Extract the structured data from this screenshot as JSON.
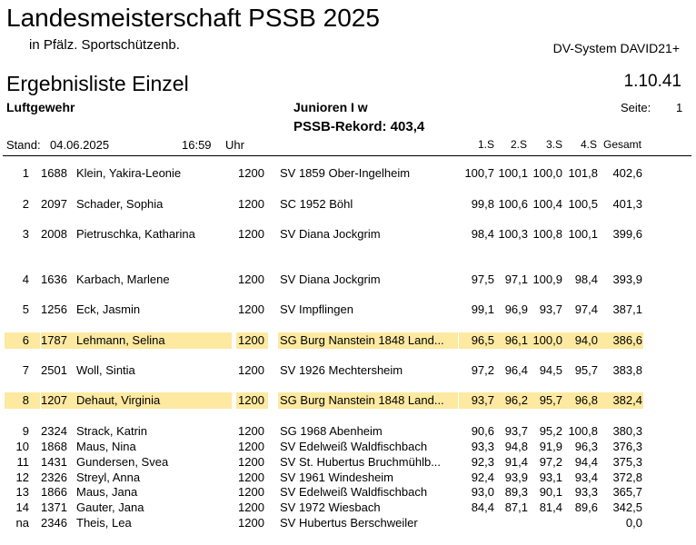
{
  "header": {
    "title": "Landesmeisterschaft PSSB 2025",
    "subtitle": "in Pfälz. Sportschützenb.",
    "system": "DV-System DAVID21+",
    "list_title": "Ergebnisliste Einzel",
    "version": "1.10.41",
    "discipline": "Luftgewehr",
    "category": "Junioren I w",
    "page_label": "Seite:",
    "page_number": "1",
    "record": "PSSB-Rekord: 403,4",
    "stand_label": "Stand:",
    "stand_date": "04.06.2025",
    "stand_time": "16:59",
    "stand_unit": "Uhr"
  },
  "columns": {
    "s1": "1.S",
    "s2": "2.S",
    "s3": "3.S",
    "s4": "4.S",
    "total": "Gesamt"
  },
  "highlight_color": "#fde9a0",
  "results": [
    {
      "rank": "1",
      "nr": "1688",
      "name": "Klein, Yakira-Leonie",
      "class": "1200",
      "club": "SV 1859 Ober-Ingelheim",
      "s1": "100,7",
      "s2": "100,1",
      "s3": "100,0",
      "s4": "101,8",
      "total": "402,6",
      "highlight": false
    },
    {
      "rank": "2",
      "nr": "2097",
      "name": "Schader, Sophia",
      "class": "1200",
      "club": "SC 1952 Böhl",
      "s1": "99,8",
      "s2": "100,6",
      "s3": "100,4",
      "s4": "100,5",
      "total": "401,3",
      "highlight": false
    },
    {
      "rank": "3",
      "nr": "2008",
      "name": "Pietruschka, Katharina",
      "class": "1200",
      "club": "SV Diana Jockgrim",
      "s1": "98,4",
      "s2": "100,3",
      "s3": "100,8",
      "s4": "100,1",
      "total": "399,6",
      "highlight": false
    },
    {
      "rank": "4",
      "nr": "1636",
      "name": "Karbach, Marlene",
      "class": "1200",
      "club": "SV Diana Jockgrim",
      "s1": "97,5",
      "s2": "97,1",
      "s3": "100,9",
      "s4": "98,4",
      "total": "393,9",
      "highlight": false
    },
    {
      "rank": "5",
      "nr": "1256",
      "name": "Eck, Jasmin",
      "class": "1200",
      "club": "SV Impflingen",
      "s1": "99,1",
      "s2": "96,9",
      "s3": "93,7",
      "s4": "97,4",
      "total": "387,1",
      "highlight": false
    },
    {
      "rank": "6",
      "nr": "1787",
      "name": "Lehmann, Selina",
      "class": "1200",
      "club": "SG Burg Nanstein 1848 Land...",
      "s1": "96,5",
      "s2": "96,1",
      "s3": "100,0",
      "s4": "94,0",
      "total": "386,6",
      "highlight": true
    },
    {
      "rank": "7",
      "nr": "2501",
      "name": "Woll, Sintia",
      "class": "1200",
      "club": "SV 1926 Mechtersheim",
      "s1": "97,2",
      "s2": "96,4",
      "s3": "94,5",
      "s4": "95,7",
      "total": "383,8",
      "highlight": false
    },
    {
      "rank": "8",
      "nr": "1207",
      "name": "Dehaut, Virginia",
      "class": "1200",
      "club": "SG Burg Nanstein 1848 Land...",
      "s1": "93,7",
      "s2": "96,2",
      "s3": "95,7",
      "s4": "96,8",
      "total": "382,4",
      "highlight": true
    },
    {
      "rank": "9",
      "nr": "2324",
      "name": "Strack, Katrin",
      "class": "1200",
      "club": "SG 1968 Abenheim",
      "s1": "90,6",
      "s2": "93,7",
      "s3": "95,2",
      "s4": "100,8",
      "total": "380,3",
      "highlight": false
    },
    {
      "rank": "10",
      "nr": "1868",
      "name": "Maus, Nina",
      "class": "1200",
      "club": "SV Edelweiß Waldfischbach",
      "s1": "93,3",
      "s2": "94,8",
      "s3": "91,9",
      "s4": "96,3",
      "total": "376,3",
      "highlight": false
    },
    {
      "rank": "11",
      "nr": "1431",
      "name": "Gundersen, Svea",
      "class": "1200",
      "club": "SV St. Hubertus Bruchmühlb...",
      "s1": "92,3",
      "s2": "91,4",
      "s3": "97,2",
      "s4": "94,4",
      "total": "375,3",
      "highlight": false
    },
    {
      "rank": "12",
      "nr": "2326",
      "name": "Streyl, Anna",
      "class": "1200",
      "club": "SV 1961 Windesheim",
      "s1": "92,4",
      "s2": "93,9",
      "s3": "93,1",
      "s4": "93,4",
      "total": "372,8",
      "highlight": false
    },
    {
      "rank": "13",
      "nr": "1866",
      "name": "Maus, Jana",
      "class": "1200",
      "club": "SV Edelweiß Waldfischbach",
      "s1": "93,0",
      "s2": "89,3",
      "s3": "90,1",
      "s4": "93,3",
      "total": "365,7",
      "highlight": false
    },
    {
      "rank": "14",
      "nr": "1371",
      "name": "Gauter, Jana",
      "class": "1200",
      "club": "SV 1972 Wiesbach",
      "s1": "84,4",
      "s2": "87,1",
      "s3": "81,4",
      "s4": "89,6",
      "total": "342,5",
      "highlight": false
    },
    {
      "rank": "na",
      "nr": "2346",
      "name": "Theis, Lea",
      "class": "1200",
      "club": "SV Hubertus Berschweiler",
      "s1": "",
      "s2": "",
      "s3": "",
      "s4": "",
      "total": "0,0",
      "highlight": false
    }
  ]
}
